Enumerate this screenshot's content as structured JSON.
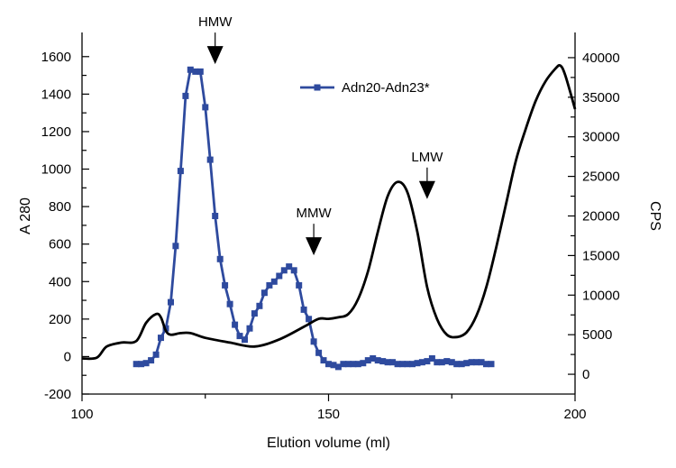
{
  "chart_data": {
    "type": "line",
    "xlabel": "Elution volume (ml)",
    "ylabel_left": "A 280",
    "ylabel_right": "CPS",
    "xlim": [
      100,
      200
    ],
    "ylim_left": [
      -200,
      1700
    ],
    "ylim_right": [
      -2500,
      42500
    ],
    "x_ticks": [
      100,
      150,
      200
    ],
    "y_left_ticks": [
      -200,
      0,
      200,
      400,
      600,
      800,
      1000,
      1200,
      1400,
      1600
    ],
    "y_right_ticks": [
      0,
      5000,
      10000,
      15000,
      20000,
      25000,
      30000,
      35000,
      40000
    ],
    "legend": {
      "placement": "top-center",
      "entries": [
        "Adn20-Adn23*"
      ]
    },
    "grid": false,
    "annotations": [
      {
        "text": "HMW",
        "x": 127,
        "y_axis": "left",
        "y": 1560
      },
      {
        "text": "MMW",
        "x": 147,
        "y_axis": "left",
        "y": 540
      },
      {
        "text": "LMW",
        "x": 170,
        "y_axis": "left",
        "y": 840
      }
    ],
    "series": [
      {
        "name": "Adn20-Adn23*",
        "axis": "left",
        "color": "#2e4a9e",
        "marker": "square",
        "x": [
          111,
          112,
          113,
          114,
          115,
          116,
          117,
          118,
          119,
          120,
          121,
          122,
          123,
          124,
          125,
          126,
          127,
          128,
          129,
          130,
          131,
          132,
          133,
          134,
          135,
          136,
          137,
          138,
          139,
          140,
          141,
          142,
          143,
          144,
          145,
          146,
          147,
          148,
          149,
          150,
          151,
          152,
          153,
          154,
          155,
          156,
          157,
          158,
          159,
          160,
          161,
          162,
          163,
          164,
          165,
          166,
          167,
          168,
          169,
          170,
          171,
          172,
          173,
          174,
          175,
          176,
          177,
          178,
          179,
          180,
          181,
          182,
          183
        ],
        "y": [
          -40,
          -40,
          -35,
          -20,
          10,
          100,
          150,
          290,
          590,
          990,
          1390,
          1530,
          1520,
          1520,
          1330,
          1050,
          750,
          520,
          380,
          280,
          170,
          110,
          90,
          150,
          230,
          270,
          340,
          380,
          400,
          430,
          460,
          480,
          460,
          380,
          250,
          200,
          80,
          20,
          -20,
          -40,
          -45,
          -55,
          -40,
          -40,
          -40,
          -40,
          -35,
          -20,
          -10,
          -20,
          -25,
          -30,
          -30,
          -40,
          -40,
          -40,
          -40,
          -35,
          -30,
          -25,
          -10,
          -30,
          -30,
          -25,
          -30,
          -40,
          -40,
          -35,
          -30,
          -30,
          -30,
          -40,
          -40
        ]
      },
      {
        "name": "",
        "axis": "right",
        "color": "#000000",
        "marker": "none",
        "x": [
          100,
          103,
          105,
          108,
          111,
          113,
          115,
          116,
          117,
          118,
          120,
          122,
          125,
          130,
          135,
          140,
          145,
          148,
          150,
          152,
          154,
          156,
          158,
          160,
          162,
          164,
          166,
          168,
          170,
          172,
          174,
          176,
          178,
          180,
          182,
          184,
          186,
          188,
          190,
          192,
          194,
          196,
          197,
          198,
          200
        ],
        "y": [
          2000,
          2100,
          3500,
          4000,
          4200,
          6500,
          7600,
          7200,
          5500,
          5000,
          5200,
          5200,
          4600,
          4000,
          3500,
          4400,
          6000,
          7000,
          7000,
          7200,
          7600,
          9500,
          13000,
          18000,
          22500,
          24300,
          23000,
          18000,
          11000,
          7000,
          5000,
          4700,
          5300,
          7400,
          11000,
          16000,
          21500,
          27000,
          31000,
          34500,
          37000,
          38600,
          39000,
          37800,
          33500
        ]
      }
    ]
  }
}
